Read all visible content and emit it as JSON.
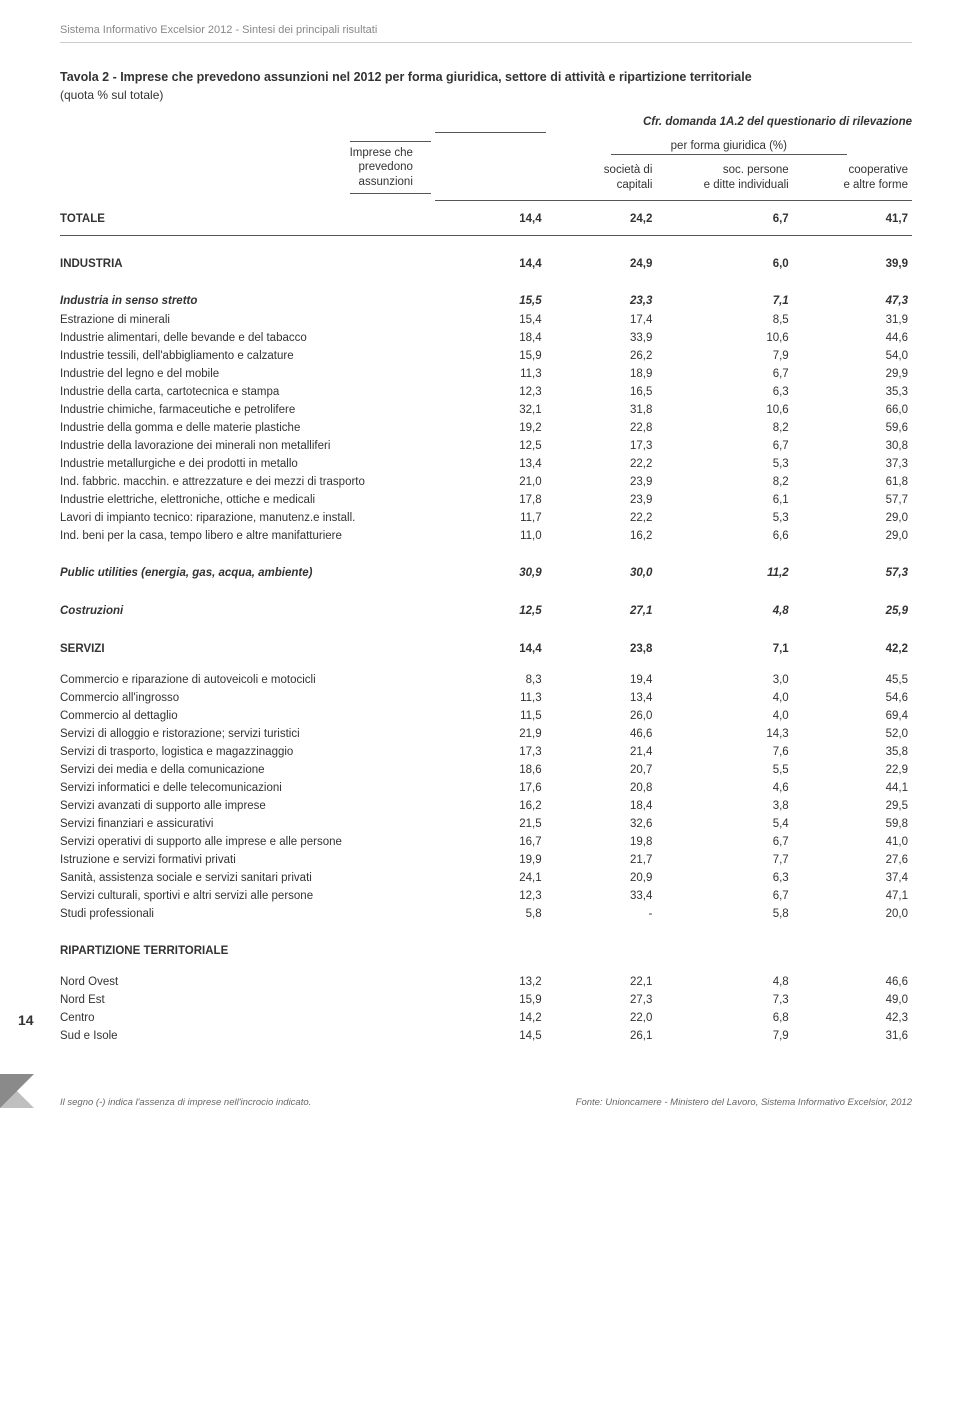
{
  "page": {
    "running_header": "Sistema Informativo Excelsior 2012 - Sintesi dei principali risultati",
    "title": "Tavola 2 - Imprese che prevedono assunzioni nel 2012 per forma giuridica, settore di attività e ripartizione territoriale",
    "subtitle": "(quota % sul totale)",
    "ref": "Cfr. domanda 1A.2 del questionario di rilevazione",
    "page_number": "14",
    "footnote_left": "Il segno (-) indica l'assenza di imprese nell'incrocio indicato.",
    "footnote_right": "Fonte: Unioncamere - Ministero del Lavoro, Sistema Informativo Excelsior, 2012"
  },
  "columns": {
    "stub_line1": "Imprese che",
    "stub_line2": "prevedono",
    "stub_line3": "assunzioni",
    "spanner": "per forma giuridica (%)",
    "c1a": "società di",
    "c1b": "capitali",
    "c2a": "soc. persone",
    "c2b": "e ditte individuali",
    "c3a": "cooperative",
    "c3b": "e altre forme"
  },
  "rows": [
    {
      "type": "total",
      "label": "TOTALE",
      "v": [
        "14,4",
        "24,2",
        "6,7",
        "41,7"
      ]
    },
    {
      "type": "section",
      "label": "INDUSTRIA",
      "v": [
        "14,4",
        "24,9",
        "6,0",
        "39,9"
      ]
    },
    {
      "type": "ital",
      "label": "Industria in senso stretto",
      "v": [
        "15,5",
        "23,3",
        "7,1",
        "47,3"
      ]
    },
    {
      "type": "plain",
      "label": "Estrazione di minerali",
      "v": [
        "15,4",
        "17,4",
        "8,5",
        "31,9"
      ]
    },
    {
      "type": "plain",
      "label": "Industrie alimentari, delle bevande e del tabacco",
      "v": [
        "18,4",
        "33,9",
        "10,6",
        "44,6"
      ]
    },
    {
      "type": "plain",
      "label": "Industrie tessili, dell'abbigliamento e calzature",
      "v": [
        "15,9",
        "26,2",
        "7,9",
        "54,0"
      ]
    },
    {
      "type": "plain",
      "label": "Industrie del legno e del mobile",
      "v": [
        "11,3",
        "18,9",
        "6,7",
        "29,9"
      ]
    },
    {
      "type": "plain",
      "label": "Industrie della carta, cartotecnica e stampa",
      "v": [
        "12,3",
        "16,5",
        "6,3",
        "35,3"
      ]
    },
    {
      "type": "plain",
      "label": "Industrie chimiche, farmaceutiche e petrolifere",
      "v": [
        "32,1",
        "31,8",
        "10,6",
        "66,0"
      ]
    },
    {
      "type": "plain",
      "label": "Industrie della gomma e delle materie plastiche",
      "v": [
        "19,2",
        "22,8",
        "8,2",
        "59,6"
      ]
    },
    {
      "type": "plain",
      "label": "Industrie della lavorazione dei minerali non metalliferi",
      "v": [
        "12,5",
        "17,3",
        "6,7",
        "30,8"
      ]
    },
    {
      "type": "plain",
      "label": "Industrie metallurgiche e dei prodotti in metallo",
      "v": [
        "13,4",
        "22,2",
        "5,3",
        "37,3"
      ]
    },
    {
      "type": "plain",
      "label": "Ind. fabbric. macchin. e attrezzature e dei mezzi di trasporto",
      "v": [
        "21,0",
        "23,9",
        "8,2",
        "61,8"
      ]
    },
    {
      "type": "plain",
      "label": "Industrie elettriche, elettroniche, ottiche e medicali",
      "v": [
        "17,8",
        "23,9",
        "6,1",
        "57,7"
      ]
    },
    {
      "type": "plain",
      "label": "Lavori di impianto tecnico: riparazione, manutenz.e install.",
      "v": [
        "11,7",
        "22,2",
        "5,3",
        "29,0"
      ]
    },
    {
      "type": "plain",
      "label": "Ind. beni per la casa, tempo libero e altre manifatturiere",
      "v": [
        "11,0",
        "16,2",
        "6,6",
        "29,0"
      ]
    },
    {
      "type": "ital",
      "label": "Public utilities (energia, gas, acqua, ambiente)",
      "v": [
        "30,9",
        "30,0",
        "11,2",
        "57,3"
      ]
    },
    {
      "type": "ital",
      "label": "Costruzioni",
      "v": [
        "12,5",
        "27,1",
        "4,8",
        "25,9"
      ]
    },
    {
      "type": "section",
      "label": "SERVIZI",
      "v": [
        "14,4",
        "23,8",
        "7,1",
        "42,2"
      ]
    },
    {
      "type": "plain gap",
      "label": "Commercio e riparazione di autoveicoli e motocicli",
      "v": [
        "8,3",
        "19,4",
        "3,0",
        "45,5"
      ]
    },
    {
      "type": "plain",
      "label": "Commercio all'ingrosso",
      "v": [
        "11,3",
        "13,4",
        "4,0",
        "54,6"
      ]
    },
    {
      "type": "plain",
      "label": "Commercio al dettaglio",
      "v": [
        "11,5",
        "26,0",
        "4,0",
        "69,4"
      ]
    },
    {
      "type": "plain",
      "label": "Servizi di alloggio e ristorazione; servizi turistici",
      "v": [
        "21,9",
        "46,6",
        "14,3",
        "52,0"
      ]
    },
    {
      "type": "plain",
      "label": "Servizi di trasporto, logistica e magazzinaggio",
      "v": [
        "17,3",
        "21,4",
        "7,6",
        "35,8"
      ]
    },
    {
      "type": "plain",
      "label": "Servizi dei media e della comunicazione",
      "v": [
        "18,6",
        "20,7",
        "5,5",
        "22,9"
      ]
    },
    {
      "type": "plain",
      "label": "Servizi informatici e delle telecomunicazioni",
      "v": [
        "17,6",
        "20,8",
        "4,6",
        "44,1"
      ]
    },
    {
      "type": "plain",
      "label": "Servizi avanzati di supporto alle imprese",
      "v": [
        "16,2",
        "18,4",
        "3,8",
        "29,5"
      ]
    },
    {
      "type": "plain",
      "label": "Servizi finanziari e assicurativi",
      "v": [
        "21,5",
        "32,6",
        "5,4",
        "59,8"
      ]
    },
    {
      "type": "plain",
      "label": "Servizi operativi di supporto alle imprese e alle persone",
      "v": [
        "16,7",
        "19,8",
        "6,7",
        "41,0"
      ]
    },
    {
      "type": "plain",
      "label": "Istruzione e servizi formativi privati",
      "v": [
        "19,9",
        "21,7",
        "7,7",
        "27,6"
      ]
    },
    {
      "type": "plain",
      "label": "Sanità, assistenza sociale e servizi sanitari privati",
      "v": [
        "24,1",
        "20,9",
        "6,3",
        "37,4"
      ]
    },
    {
      "type": "plain",
      "label": "Servizi culturali, sportivi e altri servizi alle persone",
      "v": [
        "12,3",
        "33,4",
        "6,7",
        "47,1"
      ]
    },
    {
      "type": "plain",
      "label": "Studi professionali",
      "v": [
        "5,8",
        "-",
        "5,8",
        "20,0"
      ]
    },
    {
      "type": "section",
      "label": "RIPARTIZIONE TERRITORIALE",
      "v": [
        "",
        "",
        "",
        ""
      ]
    },
    {
      "type": "plain gap",
      "label": "Nord Ovest",
      "v": [
        "13,2",
        "22,1",
        "4,8",
        "46,6"
      ]
    },
    {
      "type": "plain",
      "label": "Nord Est",
      "v": [
        "15,9",
        "27,3",
        "7,3",
        "49,0"
      ]
    },
    {
      "type": "plain",
      "label": "Centro",
      "v": [
        "14,2",
        "22,0",
        "6,8",
        "42,3"
      ]
    },
    {
      "type": "plain",
      "label": "Sud e Isole",
      "v": [
        "14,5",
        "26,1",
        "7,9",
        "31,6"
      ]
    }
  ],
  "style": {
    "col_widths": [
      "44%",
      "13%",
      "13%",
      "16%",
      "14%"
    ],
    "text_color": "#333333",
    "rule_color": "#555555"
  }
}
